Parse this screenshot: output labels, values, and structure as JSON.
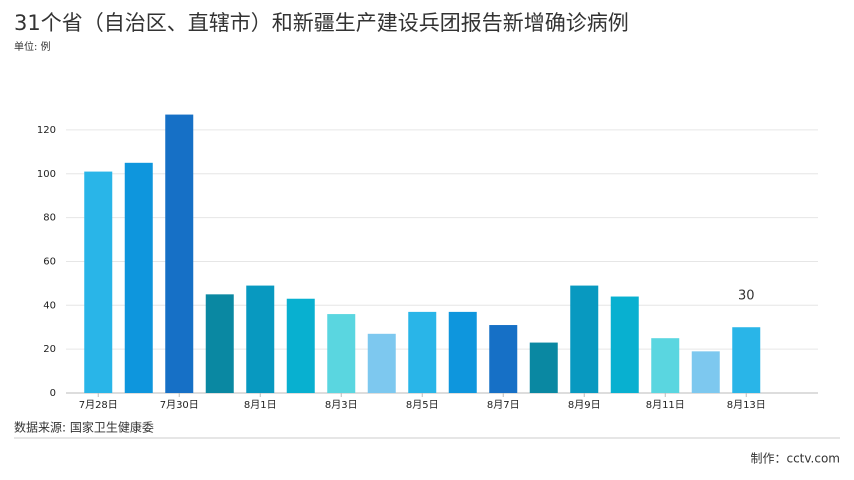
{
  "chart_data": {
    "type": "bar",
    "title": "31个省（自治区、直辖市）和新疆生产建设兵团报告新增确诊病例",
    "subtitle": "单位: 例",
    "source": "数据来源: 国家卫生健康委",
    "credit": "制作：cctv.com",
    "categories": [
      "7月28日",
      null,
      "7月30日",
      null,
      "8月1日",
      null,
      "8月3日",
      null,
      "8月5日",
      null,
      "8月7日",
      null,
      "8月9日",
      null,
      "8月11日",
      null,
      "8月13日"
    ],
    "values": [
      101,
      105,
      127,
      45,
      49,
      43,
      36,
      27,
      37,
      37,
      31,
      23,
      49,
      44,
      25,
      19,
      30
    ],
    "colors": [
      "#29b5e8",
      "#0e96dd",
      "#1670c6",
      "#0a88a2",
      "#0899c0",
      "#08b0d0",
      "#5ad6e0",
      "#7dc8ef",
      "#29b5e8",
      "#0e96dd",
      "#1670c6",
      "#0a88a2",
      "#0899c0",
      "#08b0d0",
      "#5ad6e0",
      "#7dc8ef",
      "#29b5e8"
    ],
    "label_last": true,
    "ylim": [
      0,
      130
    ],
    "yticks": [
      0,
      20,
      40,
      60,
      80,
      100,
      120
    ],
    "grid": true
  }
}
